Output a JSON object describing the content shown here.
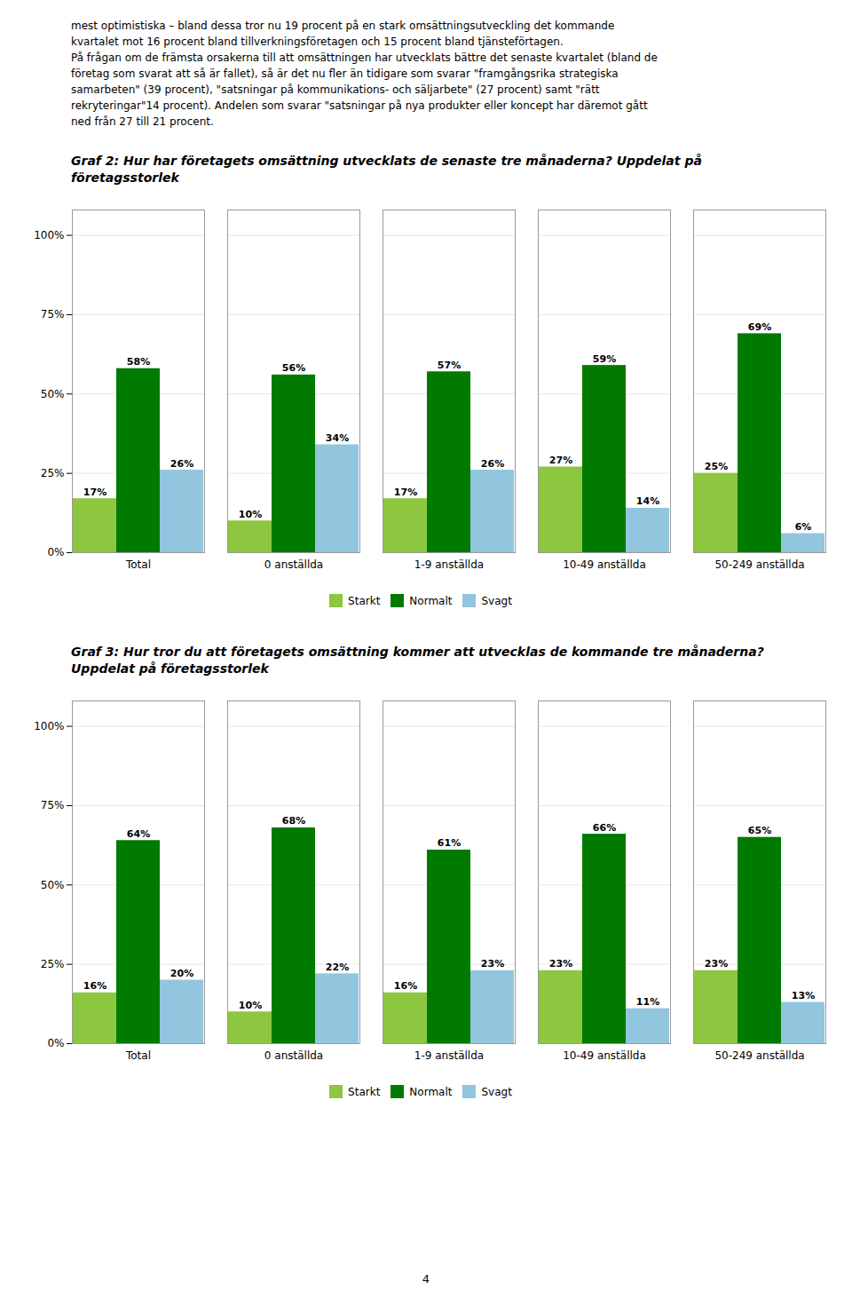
{
  "text": [
    "mest optimistiska – bland dessa tror nu 19 procent på en stark omsättningsutveckling det kommande",
    "kvartalet mot 16 procent bland tillverkningsföretagen och 15 procent bland tjänsteförtagen.",
    "På frågan om de främsta orsakerna till att omsättningen har utvecklats bättre det senaste kvartalet (bland de",
    "företag som svarat att så är fallet), så är det nu fler än tidigare som svarar \"framgångsrika strategiska",
    "samarbeten\" (39 procent), \"satsningar på kommunikations- och säljarbete\" (27 procent) samt \"rätt",
    "rekryteringar\"14 procent). Andelen som svarar \"satsningar på nya produkter eller koncept har däremot gått",
    "ned från 27 till 21 procent."
  ],
  "page_number": "4",
  "chart_data": [
    {
      "type": "bar",
      "title": "Graf 2: Hur har företagets omsättning utvecklats de senaste tre månaderna? Uppdelat på\nföretagsstorlek",
      "categories": [
        "Total",
        "0 anställda",
        "1-9 anställda",
        "10-49 anställda",
        "50-249 anställda"
      ],
      "series": [
        {
          "name": "Starkt",
          "color": "#8dc63f",
          "values": [
            17,
            10,
            17,
            27,
            25
          ],
          "value_labels": [
            "17%",
            "10%",
            "17%",
            "27%",
            "25%"
          ]
        },
        {
          "name": "Normalt",
          "color": "#007a00",
          "values": [
            58,
            56,
            57,
            59,
            69
          ],
          "value_labels": [
            "58%",
            "56%",
            "57%",
            "59%",
            "69%"
          ]
        },
        {
          "name": "Svagt",
          "color": "#92c5de",
          "values": [
            26,
            34,
            26,
            14,
            6
          ],
          "value_labels": [
            "26%",
            "34%",
            "26%",
            "14%",
            "6%"
          ]
        }
      ],
      "ylim": [
        0,
        108
      ],
      "yticks": [
        {
          "value": 0,
          "label": "0%"
        },
        {
          "value": 25,
          "label": "25%"
        },
        {
          "value": 50,
          "label": "50%"
        },
        {
          "value": 75,
          "label": "75%"
        },
        {
          "value": 100,
          "label": "100%"
        }
      ],
      "grid": true,
      "legend": "bottom",
      "data_labels": true
    },
    {
      "type": "bar",
      "title": "Graf 3: Hur tror du att företagets omsättning kommer att utvecklas de kommande tre månaderna?\nUppdelat på företagsstorlek",
      "categories": [
        "Total",
        "0 anställda",
        "1-9 anställda",
        "10-49 anställda",
        "50-249 anställda"
      ],
      "series": [
        {
          "name": "Starkt",
          "color": "#8dc63f",
          "values": [
            16,
            10,
            16,
            23,
            23
          ],
          "value_labels": [
            "16%",
            "10%",
            "16%",
            "23%",
            "23%"
          ]
        },
        {
          "name": "Normalt",
          "color": "#007a00",
          "values": [
            64,
            68,
            61,
            66,
            65
          ],
          "value_labels": [
            "64%",
            "68%",
            "61%",
            "66%",
            "65%"
          ]
        },
        {
          "name": "Svagt",
          "color": "#92c5de",
          "values": [
            20,
            22,
            23,
            11,
            13
          ],
          "value_labels": [
            "20%",
            "22%",
            "23%",
            "11%",
            "13%"
          ]
        }
      ],
      "ylim": [
        0,
        108
      ],
      "yticks": [
        {
          "value": 0,
          "label": "0%"
        },
        {
          "value": 25,
          "label": "25%"
        },
        {
          "value": 50,
          "label": "50%"
        },
        {
          "value": 75,
          "label": "75%"
        },
        {
          "value": 100,
          "label": "100%"
        }
      ],
      "grid": true,
      "legend": "bottom",
      "data_labels": true
    }
  ]
}
